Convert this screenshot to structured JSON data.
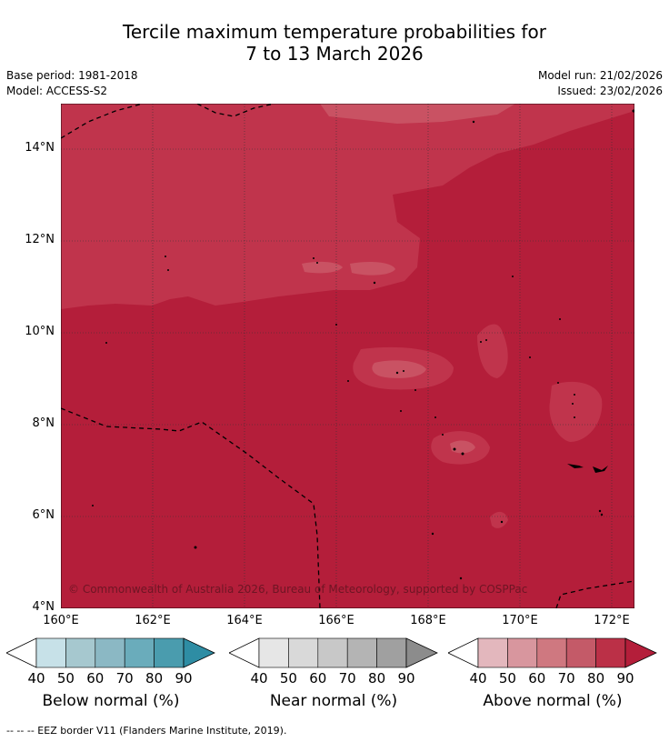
{
  "title": {
    "line1": "Tercile maximum temperature probabilities for",
    "line2": "7 to 13 March 2026"
  },
  "meta": {
    "base_period": "Base period: 1981-2018",
    "model": "Model: ACCESS-S2",
    "model_run": "Model run: 21/02/2026",
    "issued": "Issued: 23/02/2026"
  },
  "map": {
    "copyright": "© Commonwealth of Australia 2026, Bureau of Meteorology, supported by COSPPac",
    "y_ticks": [
      "14°N",
      "12°N",
      "10°N",
      "8°N",
      "6°N",
      "4°N"
    ],
    "x_ticks": [
      "160°E",
      "162°E",
      "164°E",
      "166°E",
      "168°E",
      "170°E",
      "172°E"
    ],
    "colors": {
      "above_70": "#c0344c",
      "above_80": "#b41e3a",
      "above_60": "#d06a78",
      "border": "#000000"
    }
  },
  "colorbars": [
    {
      "title": "Below normal (%)",
      "labels": [
        "40",
        "50",
        "60",
        "70",
        "80",
        "90"
      ],
      "colors": [
        "#ffffff",
        "#c7e1e8",
        "#a6c8cf",
        "#8bb8c4",
        "#6aacbb",
        "#4a9cae",
        "#2e8da4"
      ]
    },
    {
      "title": "Near normal (%)",
      "labels": [
        "40",
        "50",
        "60",
        "70",
        "80",
        "90"
      ],
      "colors": [
        "#ffffff",
        "#e6e6e6",
        "#d9d9d9",
        "#c8c8c8",
        "#b4b4b4",
        "#a0a0a0",
        "#8c8c8c"
      ]
    },
    {
      "title": "Above normal (%)",
      "labels": [
        "40",
        "50",
        "60",
        "70",
        "80",
        "90"
      ],
      "colors": [
        "#ffffff",
        "#e3b7bd",
        "#d8969e",
        "#cf7880",
        "#c45a68",
        "#bb3047",
        "#b41e3a"
      ]
    }
  ],
  "footer": "-- -- -- EEZ border V11 (Flanders Marine Institute, 2019)."
}
